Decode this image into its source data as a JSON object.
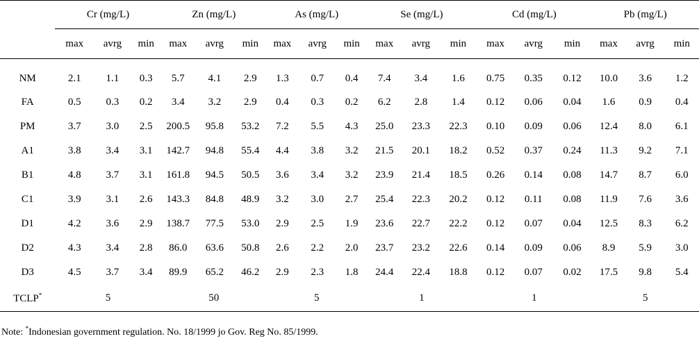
{
  "table": {
    "groups": [
      "Cr (mg/L)",
      "Zn (mg/L)",
      "As (mg/L)",
      "Se (mg/L)",
      "Cd (mg/L)",
      "Pb (mg/L)"
    ],
    "subheaders": [
      "max",
      "avrg",
      "min"
    ],
    "rows": [
      {
        "label": "NM",
        "values": [
          "2.1",
          "1.1",
          "0.3",
          "5.7",
          "4.1",
          "2.9",
          "1.3",
          "0.7",
          "0.4",
          "7.4",
          "3.4",
          "1.6",
          "0.75",
          "0.35",
          "0.12",
          "10.0",
          "3.6",
          "1.2"
        ]
      },
      {
        "label": "FA",
        "values": [
          "0.5",
          "0.3",
          "0.2",
          "3.4",
          "3.2",
          "2.9",
          "0.4",
          "0.3",
          "0.2",
          "6.2",
          "2.8",
          "1.4",
          "0.12",
          "0.06",
          "0.04",
          "1.6",
          "0.9",
          "0.4"
        ]
      },
      {
        "label": "PM",
        "values": [
          "3.7",
          "3.0",
          "2.5",
          "200.5",
          "95.8",
          "53.2",
          "7.2",
          "5.5",
          "4.3",
          "25.0",
          "23.3",
          "22.3",
          "0.10",
          "0.09",
          "0.06",
          "12.4",
          "8.0",
          "6.1"
        ]
      },
      {
        "label": "A1",
        "values": [
          "3.8",
          "3.4",
          "3.1",
          "142.7",
          "94.8",
          "55.4",
          "4.4",
          "3.8",
          "3.2",
          "21.5",
          "20.1",
          "18.2",
          "0.52",
          "0.37",
          "0.24",
          "11.3",
          "9.2",
          "7.1"
        ]
      },
      {
        "label": "B1",
        "values": [
          "4.8",
          "3.7",
          "3.1",
          "161.8",
          "94.5",
          "50.5",
          "3.6",
          "3.4",
          "3.2",
          "23.9",
          "21.4",
          "18.5",
          "0.26",
          "0.14",
          "0.08",
          "14.7",
          "8.7",
          "6.0"
        ]
      },
      {
        "label": "C1",
        "values": [
          "3.9",
          "3.1",
          "2.6",
          "143.3",
          "84.8",
          "48.9",
          "3.2",
          "3.0",
          "2.7",
          "25.4",
          "22.3",
          "20.2",
          "0.12",
          "0.11",
          "0.08",
          "11.9",
          "7.6",
          "3.6"
        ]
      },
      {
        "label": "D1",
        "values": [
          "4.2",
          "3.6",
          "2.9",
          "138.7",
          "77.5",
          "53.0",
          "2.9",
          "2.5",
          "1.9",
          "23.6",
          "22.7",
          "22.2",
          "0.12",
          "0.07",
          "0.04",
          "12.5",
          "8.3",
          "6.2"
        ]
      },
      {
        "label": "D2",
        "values": [
          "4.3",
          "3.4",
          "2.8",
          "86.0",
          "63.6",
          "50.8",
          "2.6",
          "2.2",
          "2.0",
          "23.7",
          "23.2",
          "22.6",
          "0.14",
          "0.09",
          "0.06",
          "8.9",
          "5.9",
          "3.0"
        ]
      },
      {
        "label": "D3",
        "values": [
          "4.5",
          "3.7",
          "3.4",
          "89.9",
          "65.2",
          "46.2",
          "2.9",
          "2.3",
          "1.8",
          "24.4",
          "22.4",
          "18.8",
          "0.12",
          "0.07",
          "0.02",
          "17.5",
          "9.8",
          "5.4"
        ]
      }
    ],
    "tclp": {
      "label": "TCLP",
      "marker": "*",
      "values": [
        "5",
        "50",
        "5",
        "1",
        "1",
        "5"
      ]
    }
  },
  "note": {
    "prefix": "Note: ",
    "marker": "*",
    "text": "Indonesian government regulation. No. 18/1999 jo Gov. Reg No. 85/1999."
  }
}
